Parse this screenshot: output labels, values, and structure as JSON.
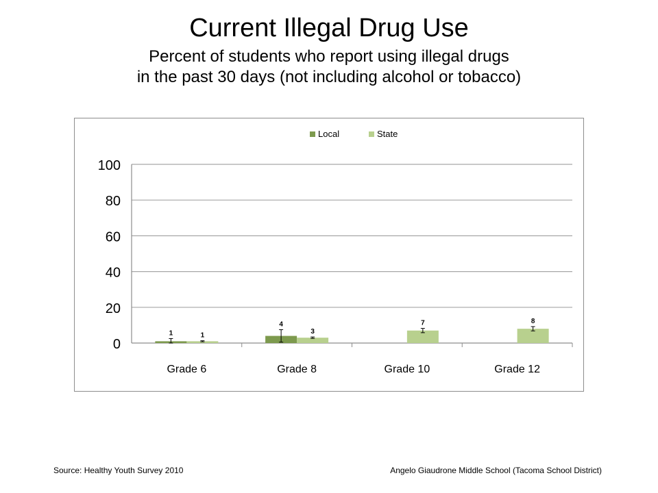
{
  "title": "Current Illegal Drug Use",
  "subtitle_line1": "Percent of students who report using illegal drugs",
  "subtitle_line2": "in the past 30 days (not including alcohol or tobacco)",
  "footer": {
    "source": "Source: Healthy Youth Survey 2010",
    "school": "Angelo Giaudrone Middle School (Tacoma School District)"
  },
  "colors": {
    "local": "#7d9a4e",
    "state": "#b8d08e",
    "grid": "#a6a6a6",
    "errorbar": "#000000"
  },
  "chart_data": {
    "type": "bar",
    "categories": [
      "Grade 6",
      "Grade 8",
      "Grade 10",
      "Grade 12"
    ],
    "series": [
      {
        "name": "Local",
        "values": [
          1,
          4,
          null,
          null
        ],
        "labels": [
          "1",
          "4",
          "",
          ""
        ],
        "error": [
          1.5,
          3.5,
          null,
          null
        ]
      },
      {
        "name": "State",
        "values": [
          1,
          3,
          7,
          8
        ],
        "labels": [
          "1",
          "3",
          "7",
          "8"
        ],
        "error": [
          0.3,
          0.4,
          1.2,
          1.2
        ]
      }
    ],
    "ylim": [
      0,
      100
    ],
    "yticks": [
      0,
      20,
      40,
      60,
      80,
      100
    ],
    "legend_position": "top-center",
    "grid": true
  }
}
